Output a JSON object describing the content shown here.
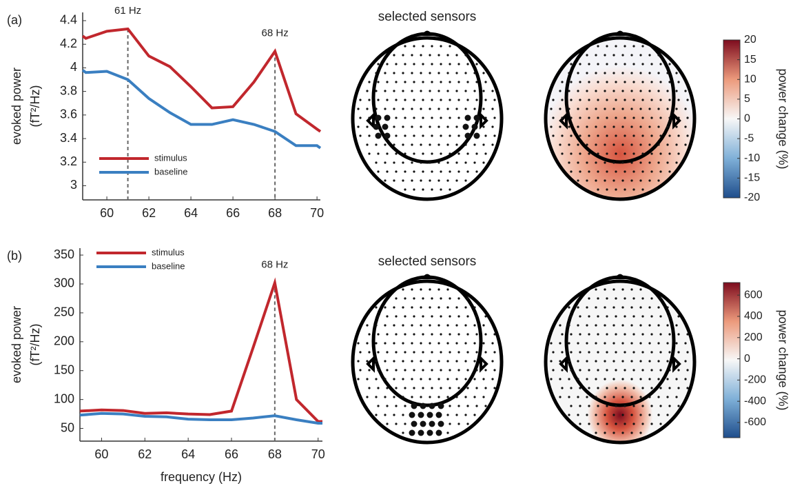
{
  "chart_data": [
    {
      "type": "line",
      "panel_label": "(a)",
      "sensors_title": "selected sensors",
      "ylabel": [
        "evoked power",
        "(fT²/Hz)"
      ],
      "x": [
        58.85,
        59,
        60,
        61,
        62,
        63,
        64,
        65,
        66,
        67,
        68,
        69,
        70,
        70.16
      ],
      "series": [
        {
          "name": "stimulus",
          "color": "#c1272d",
          "values": [
            4.27,
            4.25,
            4.31,
            4.33,
            4.1,
            4.01,
            3.84,
            3.66,
            3.67,
            3.88,
            4.14,
            3.61,
            3.48,
            3.46
          ]
        },
        {
          "name": "baseline",
          "color": "#3a7fc1",
          "values": [
            3.98,
            3.96,
            3.97,
            3.9,
            3.74,
            3.62,
            3.52,
            3.52,
            3.56,
            3.52,
            3.46,
            3.34,
            3.34,
            3.32
          ]
        }
      ],
      "xlim": [
        58.85,
        70.16
      ],
      "xticks": [
        60,
        62,
        64,
        66,
        68,
        70
      ],
      "ylim": [
        2.88,
        4.47
      ],
      "yticks": [
        3,
        3.2,
        3.4,
        3.6,
        3.8,
        4,
        4.2,
        4.4
      ],
      "annotations": [
        {
          "x": 61,
          "label": "61 Hz"
        },
        {
          "x": 68,
          "label": "68 Hz"
        }
      ],
      "legend": "lower left"
    },
    {
      "type": "colorbar",
      "title": "power change (%)",
      "ylim": [
        -20,
        20
      ],
      "yticks": [
        -20,
        -15,
        -10,
        -5,
        0,
        5,
        10,
        15,
        20
      ]
    },
    {
      "type": "line",
      "panel_label": "(b)",
      "sensors_title": "selected sensors",
      "ylabel": [
        "evoked power",
        "(fT²/Hz)"
      ],
      "xlabel": "frequency (Hz)",
      "x": [
        59,
        60,
        61,
        62,
        63,
        64,
        65,
        66,
        67,
        68,
        69,
        70,
        70.2
      ],
      "series": [
        {
          "name": "stimulus",
          "color": "#c1272d",
          "values": [
            80,
            82,
            81,
            76,
            77,
            75,
            74,
            80,
            190,
            302,
            100,
            62,
            62
          ]
        },
        {
          "name": "baseline",
          "color": "#3a7fc1",
          "values": [
            73,
            76,
            75,
            71,
            70,
            66,
            65,
            65,
            68,
            72,
            65,
            59,
            59
          ]
        }
      ],
      "xlim": [
        59,
        70.2
      ],
      "xticks": [
        60,
        62,
        64,
        66,
        68,
        70
      ],
      "ylim": [
        28,
        362
      ],
      "yticks": [
        50,
        100,
        150,
        200,
        250,
        300,
        350
      ],
      "annotations": [
        {
          "x": 68,
          "label": "68 Hz"
        }
      ],
      "legend": "upper left"
    },
    {
      "type": "colorbar",
      "title": "power change (%)",
      "ylim": [
        -743,
        718
      ],
      "yticks": [
        -600,
        -400,
        -200,
        0,
        200,
        400,
        600
      ]
    }
  ]
}
